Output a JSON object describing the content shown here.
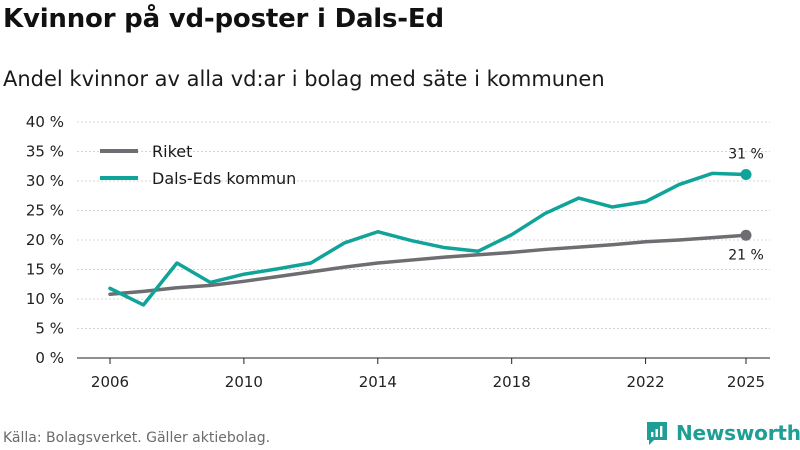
{
  "header": {
    "title": "Kvinnor på vd-poster i Dals-Ed",
    "subtitle": "Andel kvinnor av alla vd:ar i bolag med säte i kommunen"
  },
  "footer": {
    "source": "Källa: Bolagsverket. Gäller aktiebolag.",
    "brand": "Newsworthy",
    "brand_icon": "newsworthy-logo-icon"
  },
  "chart_data": {
    "type": "line",
    "title": "Kvinnor på vd-poster i Dals-Ed",
    "subtitle": "Andel kvinnor av alla vd:ar i bolag med säte i kommunen",
    "xlabel": "",
    "ylabel": "",
    "x": [
      2006,
      2007,
      2008,
      2009,
      2010,
      2011,
      2012,
      2013,
      2014,
      2015,
      2016,
      2017,
      2018,
      2019,
      2020,
      2021,
      2022,
      2023,
      2024,
      2025
    ],
    "xlim": [
      2006,
      2025
    ],
    "ylim": [
      0,
      40
    ],
    "x_ticks": [
      2006,
      2010,
      2014,
      2018,
      2022,
      2025
    ],
    "y_ticks": [
      0,
      5,
      10,
      15,
      20,
      25,
      30,
      35,
      40
    ],
    "y_tick_labels": [
      "0 %",
      "5 %",
      "10 %",
      "15 %",
      "20 %",
      "25 %",
      "30 %",
      "35 %",
      "40 %"
    ],
    "grid": true,
    "legend_position": "top-left",
    "series": [
      {
        "name": "Riket",
        "color": "#6e6d72",
        "values": [
          10.8,
          11.3,
          11.9,
          12.3,
          13.0,
          13.8,
          14.6,
          15.4,
          16.1,
          16.6,
          17.1,
          17.5,
          17.9,
          18.4,
          18.8,
          19.2,
          19.7,
          20.0,
          20.4,
          20.8
        ],
        "end_label": "21 %"
      },
      {
        "name": "Dals-Eds kommun",
        "color": "#10a399",
        "values": [
          11.8,
          9.0,
          16.1,
          12.8,
          14.2,
          15.1,
          16.1,
          19.5,
          21.4,
          19.9,
          18.7,
          18.1,
          20.9,
          24.5,
          27.1,
          25.6,
          26.5,
          29.4,
          31.3,
          31.1
        ],
        "end_label": "31 %"
      }
    ]
  }
}
